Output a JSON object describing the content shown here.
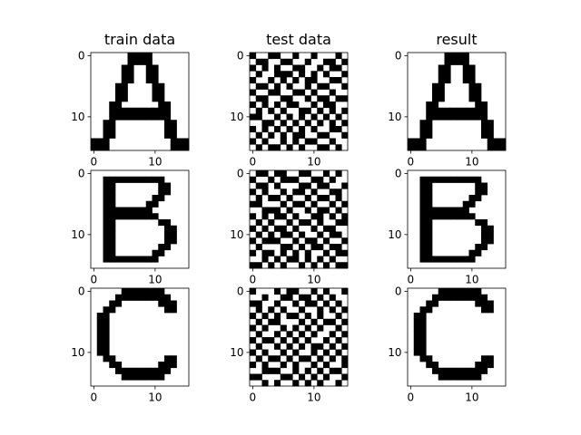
{
  "figure": {
    "background": "#ffffff",
    "ink_color": "#000000",
    "column_titles": [
      "train data",
      "test data",
      "result"
    ]
  },
  "chart_data": [
    {
      "type": "heatmap",
      "row": 0,
      "col": 0,
      "title": "train data",
      "xticks": [
        0,
        10
      ],
      "yticks": [
        0,
        10
      ],
      "xlim": [
        -0.5,
        15.5
      ],
      "ylim": [
        15.5,
        -0.5
      ],
      "grid": false,
      "colormap": "binary",
      "values": [
        "0000001111000000",
        "0000001111000000",
        "0000011001100000",
        "0000011001100000",
        "0000011001100000",
        "0000110000110000",
        "0000110000110000",
        "0000110000110000",
        "0001100000011000",
        "0001111111111000",
        "0001111111111000",
        "0011000000001100",
        "0011000000001100",
        "0011000000001100",
        "1110000000000111",
        "1110000000000111"
      ]
    },
    {
      "type": "heatmap",
      "row": 0,
      "col": 1,
      "title": "test data",
      "xticks": [
        0,
        10
      ],
      "yticks": [
        0,
        10
      ],
      "xlim": [
        -0.5,
        15.5
      ],
      "ylim": [
        15.5,
        -0.5
      ],
      "grid": false,
      "colormap": "binary",
      "values": [
        "1001100100100010",
        "0110011001001101",
        "1010100110010110",
        "0100111010101001",
        "1001010101100110",
        "0110101001011001",
        "1001100110100100",
        "0110011001011011",
        "1010101100101100",
        "0101010011010101",
        "1100101010101010",
        "0011010101010101",
        "1010101010100110",
        "0101010110011001",
        "1010010101100100",
        "0101101010011010"
      ]
    },
    {
      "type": "heatmap",
      "row": 0,
      "col": 2,
      "title": "result",
      "xticks": [
        0,
        10
      ],
      "yticks": [
        0,
        10
      ],
      "xlim": [
        -0.5,
        15.5
      ],
      "ylim": [
        15.5,
        -0.5
      ],
      "grid": false,
      "colormap": "binary",
      "values": [
        "0000001111000000",
        "0000001111000000",
        "0000011001100000",
        "0000011001100000",
        "0000011001100000",
        "0000110000110000",
        "0000110000110000",
        "0000110000110000",
        "0001100000011000",
        "0001111111111000",
        "0001111111111000",
        "0011000000001100",
        "0011000000001100",
        "0011000000001100",
        "1110000000000111",
        "1110000000000111"
      ]
    },
    {
      "type": "heatmap",
      "row": 1,
      "col": 0,
      "xticks": [
        0,
        10
      ],
      "yticks": [
        0,
        10
      ],
      "xlim": [
        -0.5,
        15.5
      ],
      "ylim": [
        15.5,
        -0.5
      ],
      "grid": false,
      "colormap": "binary",
      "values": [
        "0000000000000000",
        "0011111111110000",
        "0011000000011000",
        "0011000000011000",
        "0011000000110000",
        "0011000001100000",
        "0011111111000000",
        "0011111111100000",
        "0011000000011000",
        "0011000000001100",
        "0011000000001100",
        "0011000000001100",
        "0011000000011000",
        "0011000000110000",
        "0011111111100000",
        "0000000000000000"
      ]
    },
    {
      "type": "heatmap",
      "row": 1,
      "col": 1,
      "xticks": [
        0,
        10
      ],
      "yticks": [
        0,
        10
      ],
      "xlim": [
        -0.5,
        15.5
      ],
      "ylim": [
        15.5,
        -0.5
      ],
      "grid": false,
      "colormap": "binary",
      "values": [
        "0110110011001010",
        "1001011100110100",
        "0110100011011001",
        "1010010110100110",
        "0101101001011010",
        "1100010110100101",
        "0011101001011010",
        "1010110100110101",
        "0101001011010011",
        "1010110100101100",
        "0101011010010110",
        "1011100101101001",
        "0100011010110110",
        "1011010101001011",
        "0010101101010100",
        "1101010010101011"
      ]
    },
    {
      "type": "heatmap",
      "row": 1,
      "col": 2,
      "xticks": [
        0,
        10
      ],
      "yticks": [
        0,
        10
      ],
      "xlim": [
        -0.5,
        15.5
      ],
      "ylim": [
        15.5,
        -0.5
      ],
      "grid": false,
      "colormap": "binary",
      "values": [
        "0000000000000000",
        "0011111111110000",
        "0011000000011000",
        "0011000000011000",
        "0011000000110000",
        "0011000001100000",
        "0011111111000000",
        "0011111111100000",
        "0011000000011000",
        "0011000000001100",
        "0011000000001100",
        "0011000000001100",
        "0011000000011000",
        "0011000000110000",
        "0011111111100000",
        "0000000000000000"
      ]
    },
    {
      "type": "heatmap",
      "row": 2,
      "col": 0,
      "xticks": [
        0,
        10
      ],
      "yticks": [
        0,
        10
      ],
      "xlim": [
        -0.5,
        15.5
      ],
      "ylim": [
        15.5,
        -0.5
      ],
      "grid": false,
      "colormap": "binary",
      "values": [
        "0000011111110000",
        "0000111111111000",
        "0001100000011100",
        "0011000000001100",
        "0110000000000000",
        "0110000000000000",
        "0110000000000000",
        "0110000000000000",
        "0110000000000000",
        "0110000000000000",
        "0110000000000000",
        "0011000000001100",
        "0001100000011100",
        "0000111111111000",
        "0000011111110000",
        "0000000000000000"
      ]
    },
    {
      "type": "heatmap",
      "row": 2,
      "col": 1,
      "xticks": [
        0,
        10
      ],
      "yticks": [
        0,
        10
      ],
      "xlim": [
        -0.5,
        15.5
      ],
      "ylim": [
        15.5,
        -0.5
      ],
      "grid": false,
      "colormap": "binary",
      "values": [
        "1000101100101001",
        "0010011011010100",
        "1100100101101010",
        "0101010010010101",
        "1010101101010010",
        "0101100010101101",
        "1010010101010010",
        "0100101010100101",
        "1011010101001010",
        "0100101010110101",
        "1010010100101010",
        "0101101011010101",
        "1010010100101001",
        "0011100101010110",
        "1100011010101001",
        "0010100101010010"
      ]
    },
    {
      "type": "heatmap",
      "row": 2,
      "col": 2,
      "xticks": [
        0,
        10
      ],
      "yticks": [
        0,
        10
      ],
      "xlim": [
        -0.5,
        15.5
      ],
      "ylim": [
        15.5,
        -0.5
      ],
      "grid": false,
      "colormap": "binary",
      "values": [
        "0000011111110000",
        "0000111111111000",
        "0001100000011100",
        "0011000000001100",
        "0110000000000000",
        "0110000000000000",
        "0110000000000000",
        "0110000000000000",
        "0110000000000000",
        "0110000000000000",
        "0110000000000000",
        "0011000000001100",
        "0001100000011100",
        "0000111111111000",
        "0000011111110000",
        "0000000000000000"
      ]
    }
  ]
}
